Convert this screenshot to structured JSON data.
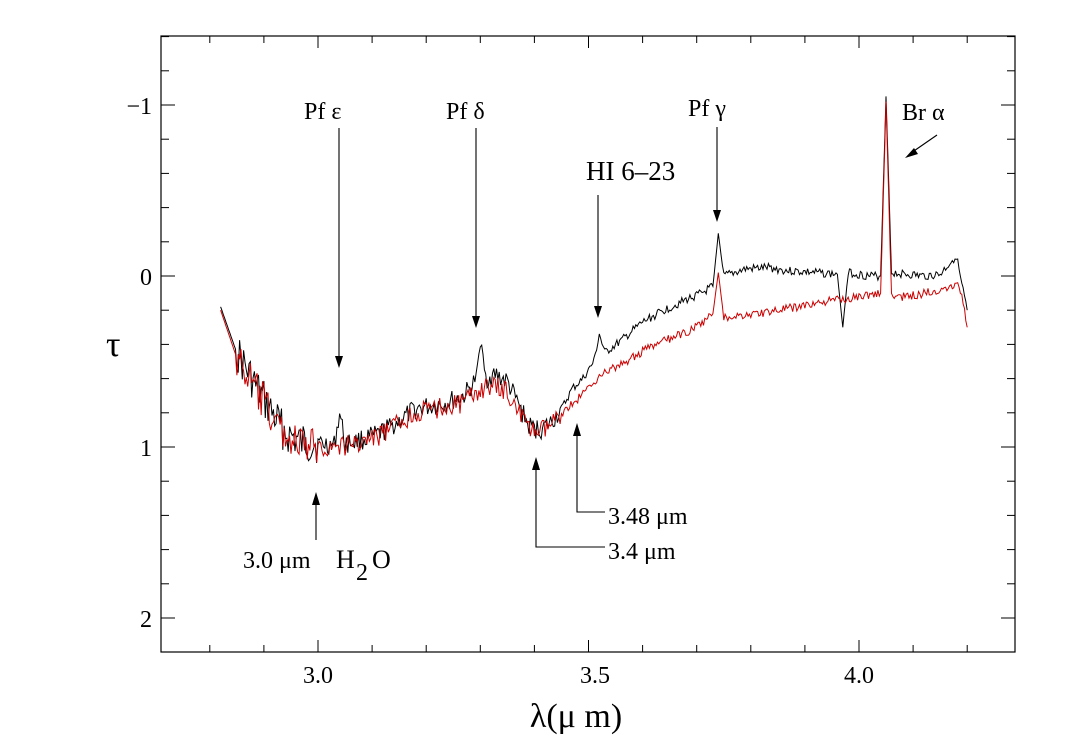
{
  "chart_data": {
    "type": "line",
    "title": "",
    "xlabel": "λ(μ m)",
    "ylabel": "τ",
    "xlim": [
      2.7,
      4.3
    ],
    "ylim": [
      2.2,
      -1.4
    ],
    "y_inverted": true,
    "x_ticks": [
      3.0,
      3.5,
      4.0
    ],
    "x_tick_labels": [
      "3.0",
      "3.5",
      "4.0"
    ],
    "y_ticks": [
      -1,
      0,
      1,
      2
    ],
    "y_tick_labels": [
      "−1",
      "0",
      "1",
      "2"
    ],
    "series": [
      {
        "name": "black spectrum",
        "color": "#000000",
        "points": [
          [
            2.82,
            0.18
          ],
          [
            2.85,
            0.45
          ],
          [
            2.88,
            0.62
          ],
          [
            2.91,
            0.78
          ],
          [
            2.94,
            0.92
          ],
          [
            2.97,
            0.98
          ],
          [
            3.0,
            0.98
          ],
          [
            3.03,
            0.99
          ],
          [
            3.04,
            0.8
          ],
          [
            3.05,
            0.98
          ],
          [
            3.08,
            0.96
          ],
          [
            3.11,
            0.93
          ],
          [
            3.15,
            0.85
          ],
          [
            3.18,
            0.78
          ],
          [
            3.21,
            0.76
          ],
          [
            3.24,
            0.74
          ],
          [
            3.27,
            0.7
          ],
          [
            3.29,
            0.62
          ],
          [
            3.3,
            0.4
          ],
          [
            3.31,
            0.6
          ],
          [
            3.33,
            0.58
          ],
          [
            3.35,
            0.62
          ],
          [
            3.37,
            0.75
          ],
          [
            3.39,
            0.88
          ],
          [
            3.41,
            0.9
          ],
          [
            3.43,
            0.86
          ],
          [
            3.45,
            0.78
          ],
          [
            3.47,
            0.66
          ],
          [
            3.49,
            0.6
          ],
          [
            3.51,
            0.5
          ],
          [
            3.52,
            0.34
          ],
          [
            3.53,
            0.45
          ],
          [
            3.56,
            0.38
          ],
          [
            3.6,
            0.27
          ],
          [
            3.64,
            0.2
          ],
          [
            3.68,
            0.14
          ],
          [
            3.71,
            0.1
          ],
          [
            3.73,
            0.06
          ],
          [
            3.74,
            -0.25
          ],
          [
            3.75,
            0.0
          ],
          [
            3.79,
            -0.04
          ],
          [
            3.83,
            -0.05
          ],
          [
            3.87,
            -0.03
          ],
          [
            3.92,
            -0.02
          ],
          [
            3.96,
            -0.01
          ],
          [
            3.97,
            0.3
          ],
          [
            3.98,
            -0.02
          ],
          [
            4.02,
            0.0
          ],
          [
            4.04,
            0.0
          ],
          [
            4.05,
            -1.05
          ],
          [
            4.06,
            -0.02
          ],
          [
            4.09,
            -0.01
          ],
          [
            4.12,
            0.0
          ],
          [
            4.15,
            -0.01
          ],
          [
            4.18,
            -0.12
          ],
          [
            4.19,
            0.05
          ],
          [
            4.2,
            0.2
          ]
        ]
      },
      {
        "name": "red spectrum",
        "color": "#cc0000",
        "points": [
          [
            2.82,
            0.2
          ],
          [
            2.85,
            0.48
          ],
          [
            2.88,
            0.64
          ],
          [
            2.91,
            0.8
          ],
          [
            2.94,
            0.93
          ],
          [
            2.97,
            1.0
          ],
          [
            3.0,
            1.0
          ],
          [
            3.03,
            1.0
          ],
          [
            3.05,
            0.99
          ],
          [
            3.08,
            0.97
          ],
          [
            3.11,
            0.94
          ],
          [
            3.15,
            0.86
          ],
          [
            3.18,
            0.8
          ],
          [
            3.21,
            0.78
          ],
          [
            3.24,
            0.76
          ],
          [
            3.27,
            0.74
          ],
          [
            3.3,
            0.66
          ],
          [
            3.33,
            0.65
          ],
          [
            3.35,
            0.68
          ],
          [
            3.37,
            0.78
          ],
          [
            3.39,
            0.9
          ],
          [
            3.41,
            0.91
          ],
          [
            3.43,
            0.88
          ],
          [
            3.45,
            0.8
          ],
          [
            3.48,
            0.72
          ],
          [
            3.51,
            0.62
          ],
          [
            3.52,
            0.58
          ],
          [
            3.56,
            0.52
          ],
          [
            3.6,
            0.44
          ],
          [
            3.64,
            0.38
          ],
          [
            3.68,
            0.33
          ],
          [
            3.71,
            0.28
          ],
          [
            3.73,
            0.22
          ],
          [
            3.74,
            -0.02
          ],
          [
            3.75,
            0.24
          ],
          [
            3.79,
            0.23
          ],
          [
            3.83,
            0.21
          ],
          [
            3.87,
            0.19
          ],
          [
            3.92,
            0.16
          ],
          [
            3.96,
            0.14
          ],
          [
            4.0,
            0.12
          ],
          [
            4.04,
            0.1
          ],
          [
            4.05,
            -1.02
          ],
          [
            4.06,
            0.12
          ],
          [
            4.09,
            0.12
          ],
          [
            4.12,
            0.1
          ],
          [
            4.15,
            0.08
          ],
          [
            4.18,
            0.04
          ],
          [
            4.19,
            0.1
          ],
          [
            4.2,
            0.3
          ]
        ]
      }
    ],
    "annotations": [
      {
        "label": "Pf ε",
        "x": 3.04
      },
      {
        "label": "Pf δ",
        "x": 3.296
      },
      {
        "label": "HI 6–23",
        "x": 3.52
      },
      {
        "label": "Pf γ",
        "x": 3.74
      },
      {
        "label": "Br α",
        "x": 4.05
      },
      {
        "label": "3.0 μm  H₂O",
        "x": 3.0
      },
      {
        "label": "3.4 μm",
        "x": 3.4
      },
      {
        "label": "3.48 μm",
        "x": 3.48
      }
    ]
  },
  "labels": {
    "pf_eps": "Pf ε",
    "pf_delta": "Pf δ",
    "hi623": "HI 6–23",
    "pf_gamma": "Pf γ",
    "br_alpha": "Br α",
    "h2o_um": "3.0 μm",
    "h2o_h": "H",
    "h2o_2": "2",
    "h2o_o": "O",
    "um34": "3.4 μm",
    "um348": "3.48 μm",
    "xlabel": "λ(μ m)",
    "ylabel": "τ"
  }
}
